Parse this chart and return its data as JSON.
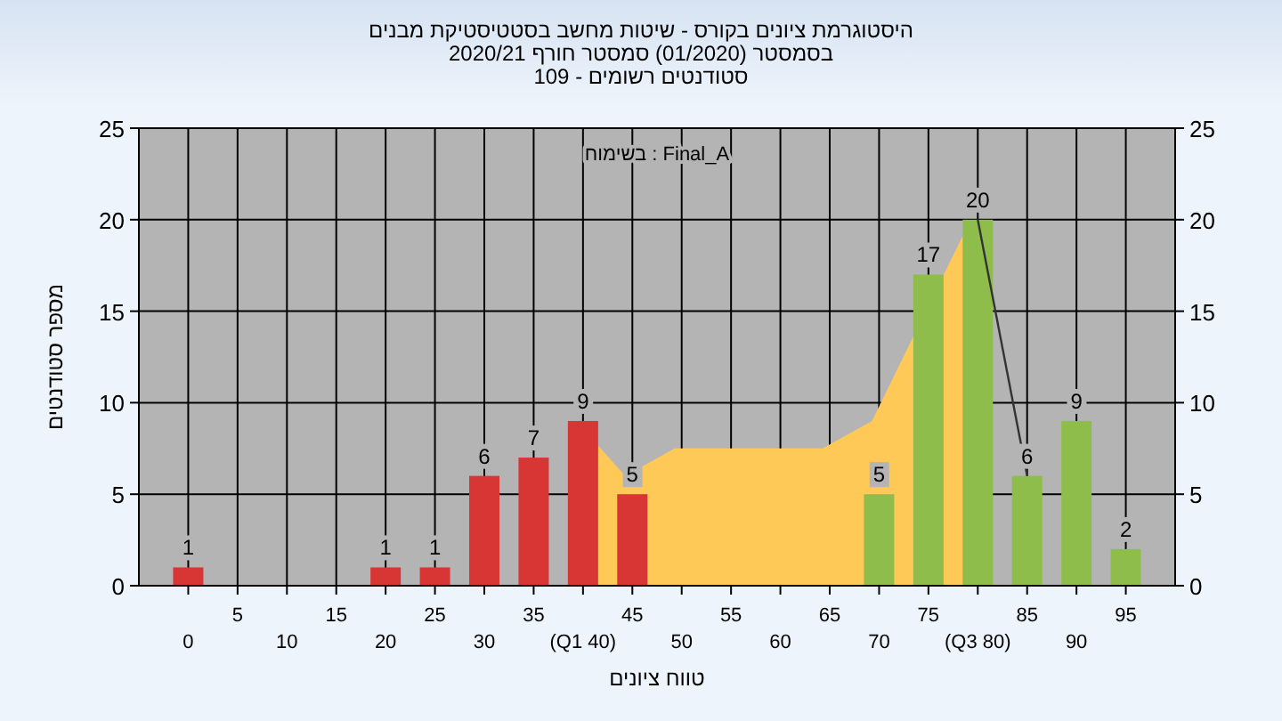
{
  "chart_data": {
    "type": "bar",
    "title": "היסטוגרמת ציונים בקורס - שיטות מחשב בסטטיסטיקת מבנים",
    "subtitle": "בסמסטר (01/2020) סמסטר חורף 2020/21",
    "xlabel": "טווח ציונים",
    "ylabel": "מספר סטודנטים",
    "annotations": [
      "סטודנטים רשומים - 109",
      "בשימוח : Final_A"
    ],
    "categories": [
      "0",
      "5",
      "10",
      "15",
      "20",
      "25",
      "30",
      "35",
      "(Q1 40)",
      "45",
      "50",
      "55",
      "60",
      "65",
      "70",
      "75",
      "(Q3 80)",
      "85",
      "90",
      "95"
    ],
    "series": [
      {
        "type": "bar",
        "colors": [
          "#d83535",
          "#d83535",
          "#d83535",
          "#d83535",
          "#d83535",
          "#d83535",
          "#d83535",
          "#d83535",
          "#d83535",
          "#d83535",
          "#8fbd4c",
          "#8fbd4c",
          "#8fbd4c",
          "#8fbd4c",
          "#8fbd4c",
          "#8fbd4c",
          "#8fbd4c",
          "#8fbd4c",
          "#8fbd4c",
          "#8fbd4c"
        ],
        "values": [
          1,
          0,
          0,
          0,
          1,
          1,
          6,
          7,
          9,
          5,
          0,
          0,
          0,
          0,
          5,
          17,
          20,
          6,
          9,
          2
        ],
        "value_labels": [
          "1",
          null,
          null,
          null,
          "1",
          "1",
          "6",
          "7",
          "9",
          "5",
          null,
          null,
          null,
          null,
          "5",
          "17",
          "20",
          "6",
          "9",
          "2"
        ]
      },
      {
        "type": "area",
        "color": "#ffc957",
        "values": [
          null,
          null,
          null,
          null,
          null,
          null,
          null,
          null,
          9,
          6,
          7.5,
          7.5,
          7.5,
          7.5,
          9,
          null,
          20,
          null,
          null,
          null
        ]
      },
      {
        "type": "line",
        "color": "#333333",
        "values": [
          null,
          null,
          null,
          null,
          null,
          null,
          null,
          null,
          null,
          null,
          null,
          null,
          null,
          null,
          null,
          null,
          20,
          6,
          null,
          null
        ]
      }
    ],
    "ylim": [
      0,
      25
    ],
    "yticks": [
      0,
      5,
      10,
      15,
      20,
      25
    ],
    "y2lim": [
      0,
      25
    ],
    "y2ticks": [
      0,
      5,
      10,
      15,
      20,
      25
    ],
    "grid": true
  }
}
